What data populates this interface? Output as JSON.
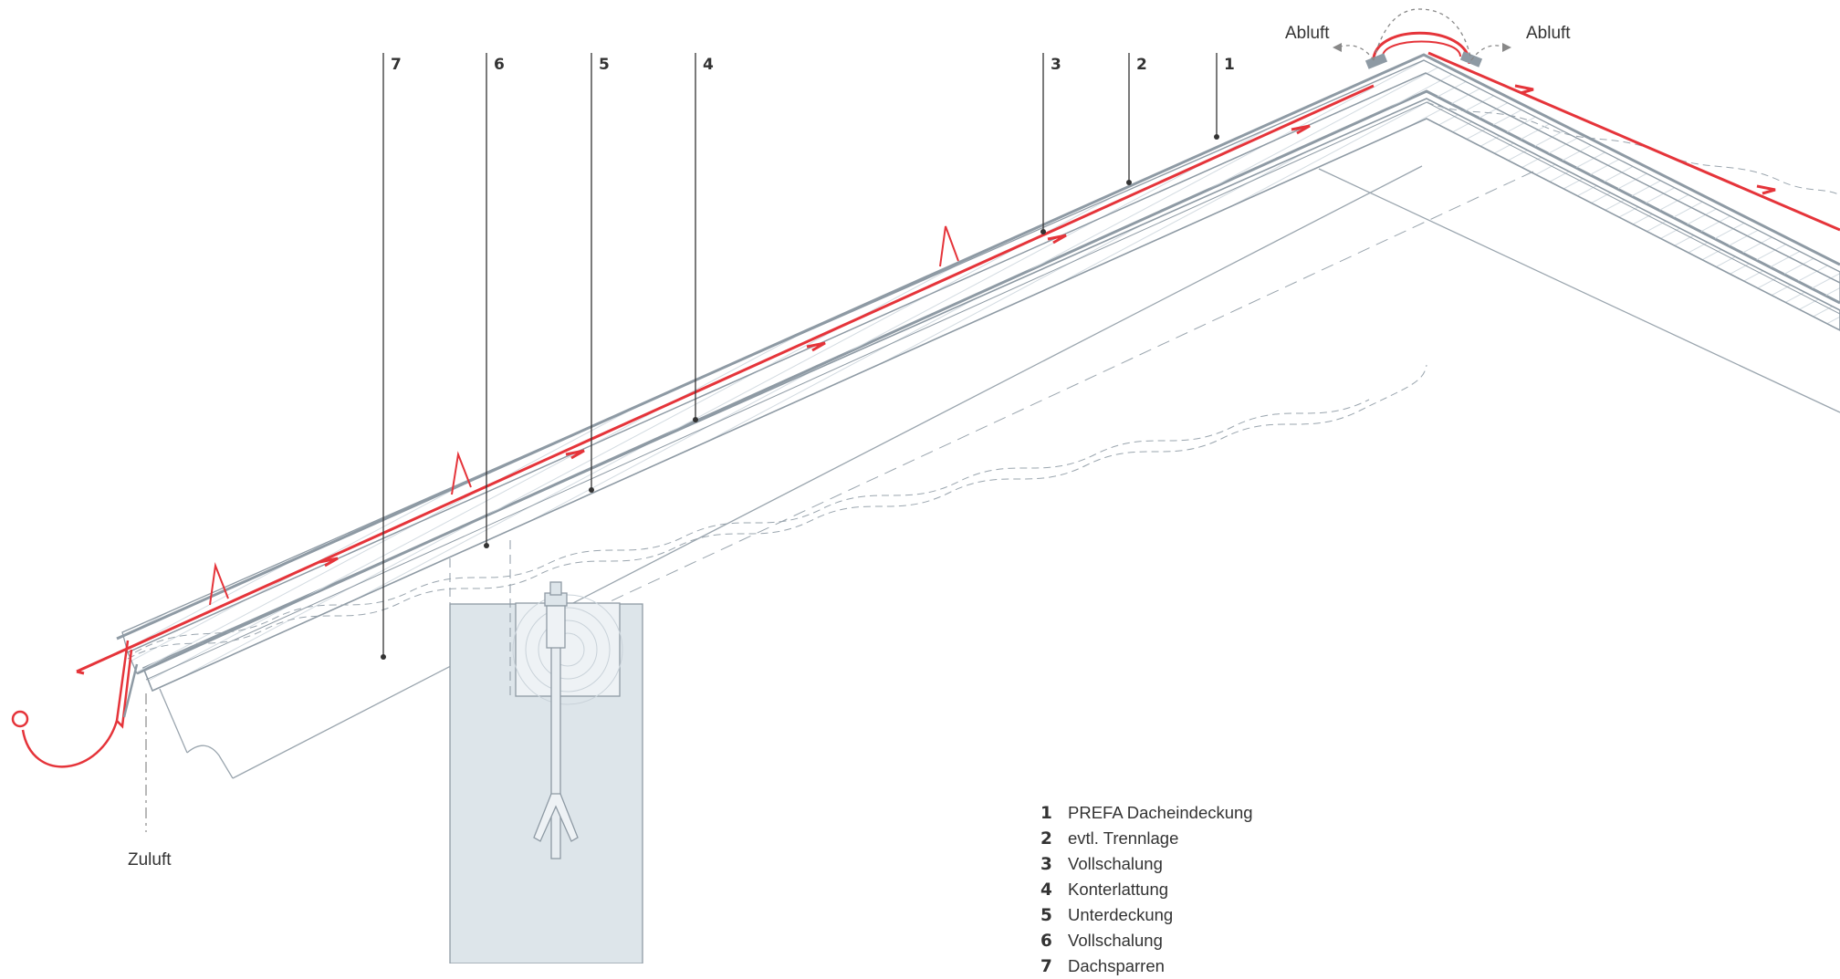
{
  "callout_numbers": [
    "7",
    "6",
    "5",
    "4",
    "3",
    "2",
    "1"
  ],
  "airflow": {
    "exhaust_left": "Abluft",
    "exhaust_right": "Abluft",
    "intake": "Zuluft"
  },
  "legend": [
    {
      "number": "1",
      "label": "PREFA Dacheindeckung"
    },
    {
      "number": "2",
      "label": "evtl. Trennlage"
    },
    {
      "number": "3",
      "label": "Vollschalung"
    },
    {
      "number": "4",
      "label": "Konterlattung"
    },
    {
      "number": "5",
      "label": "Unterdeckung"
    },
    {
      "number": "6",
      "label": "Vollschalung"
    },
    {
      "number": "7",
      "label": "Dachsparren"
    }
  ],
  "colors": {
    "roof_covering": "#e5343a",
    "layers": "#8e9aa4",
    "wall": "#dde5ea",
    "lines": "#333333"
  }
}
